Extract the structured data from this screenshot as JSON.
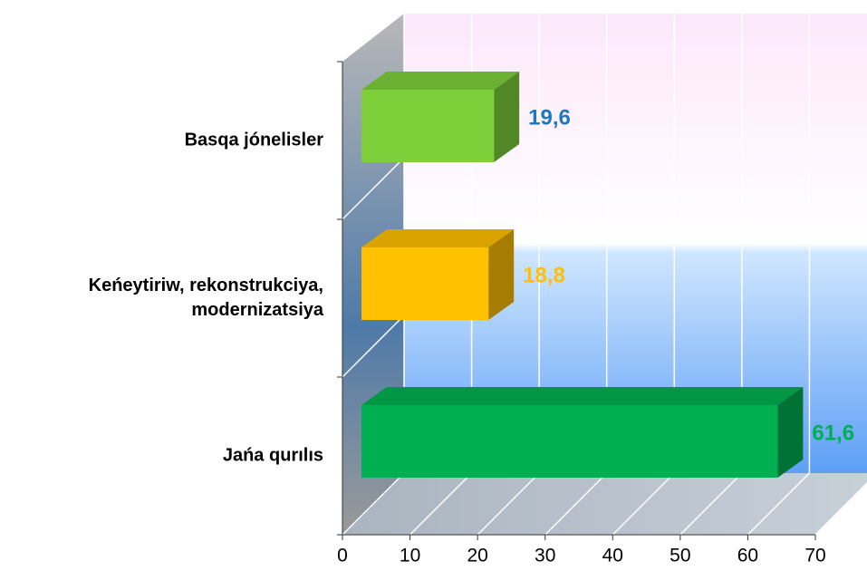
{
  "chart_data": {
    "type": "bar3d_horizontal",
    "categories": [
      "Basqa jónelisler",
      "Keńeytiriw, rekonstrukciya,\nmodernizatsiya",
      "Jańa qurılıs"
    ],
    "values": [
      19.6,
      18.8,
      61.6
    ],
    "value_labels": [
      "19,6",
      "18,8",
      "61,6"
    ],
    "colors": [
      "#7ed03a",
      "#ffc000",
      "#00b050"
    ],
    "value_label_colors": [
      "#1c78c0",
      "#ffc000",
      "#00b050"
    ],
    "xlim": [
      0,
      70
    ],
    "xticks": [
      0,
      10,
      20,
      30,
      40,
      50,
      60,
      70
    ],
    "grid": true
  }
}
